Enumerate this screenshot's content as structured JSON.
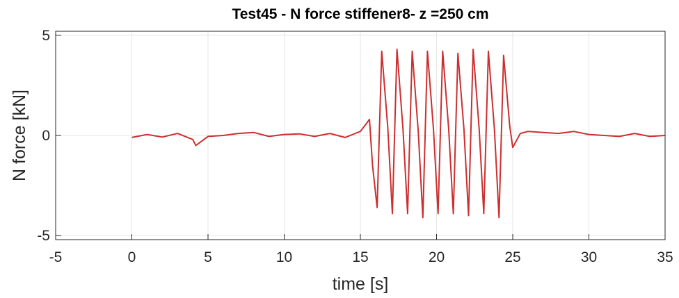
{
  "chart_data": {
    "type": "line",
    "title": "Test45 - N force stiffener8- z =250 cm",
    "xlabel": "time [s]",
    "ylabel": "N force [kN]",
    "xlim": [
      -5,
      35
    ],
    "ylim": [
      -5.2,
      5.2
    ],
    "xticks": [
      -5,
      0,
      5,
      10,
      15,
      20,
      25,
      30,
      35
    ],
    "yticks": [
      -5,
      0,
      5
    ],
    "grid": true,
    "line_color": "#CC2F2F",
    "series": [
      {
        "x": [
          0,
          1,
          2,
          3,
          4,
          4.2,
          5,
          6,
          7,
          8,
          9,
          10,
          11,
          12,
          13,
          14,
          15,
          15.3,
          15.6,
          15.8,
          16.1,
          16.4,
          16.8,
          17.1,
          17.4,
          17.8,
          18.1,
          18.4,
          18.8,
          19.1,
          19.4,
          19.8,
          20.1,
          20.4,
          20.8,
          21.1,
          21.4,
          21.8,
          22.1,
          22.4,
          22.8,
          23.1,
          23.4,
          23.8,
          24.1,
          24.4,
          24.8,
          25.0,
          25.5,
          26,
          27,
          28,
          29,
          30,
          31,
          32,
          33,
          34,
          35
        ],
        "y": [
          -0.1,
          0.05,
          -0.08,
          0.1,
          -0.2,
          -0.5,
          -0.05,
          0.0,
          0.1,
          0.15,
          -0.05,
          0.05,
          0.08,
          -0.05,
          0.1,
          -0.1,
          0.2,
          0.5,
          0.8,
          -1.5,
          -3.6,
          4.2,
          0.4,
          -3.9,
          4.3,
          0.3,
          -3.9,
          4.2,
          0.2,
          -4.1,
          4.2,
          0.3,
          -3.9,
          4.2,
          0.3,
          -3.9,
          4.1,
          0.3,
          -4.0,
          4.3,
          0.3,
          -3.9,
          4.2,
          0.3,
          -4.1,
          4.0,
          0.5,
          -0.6,
          0.1,
          0.2,
          0.15,
          0.1,
          0.2,
          0.05,
          0.0,
          -0.05,
          0.1,
          -0.05,
          0.0
        ]
      }
    ]
  }
}
